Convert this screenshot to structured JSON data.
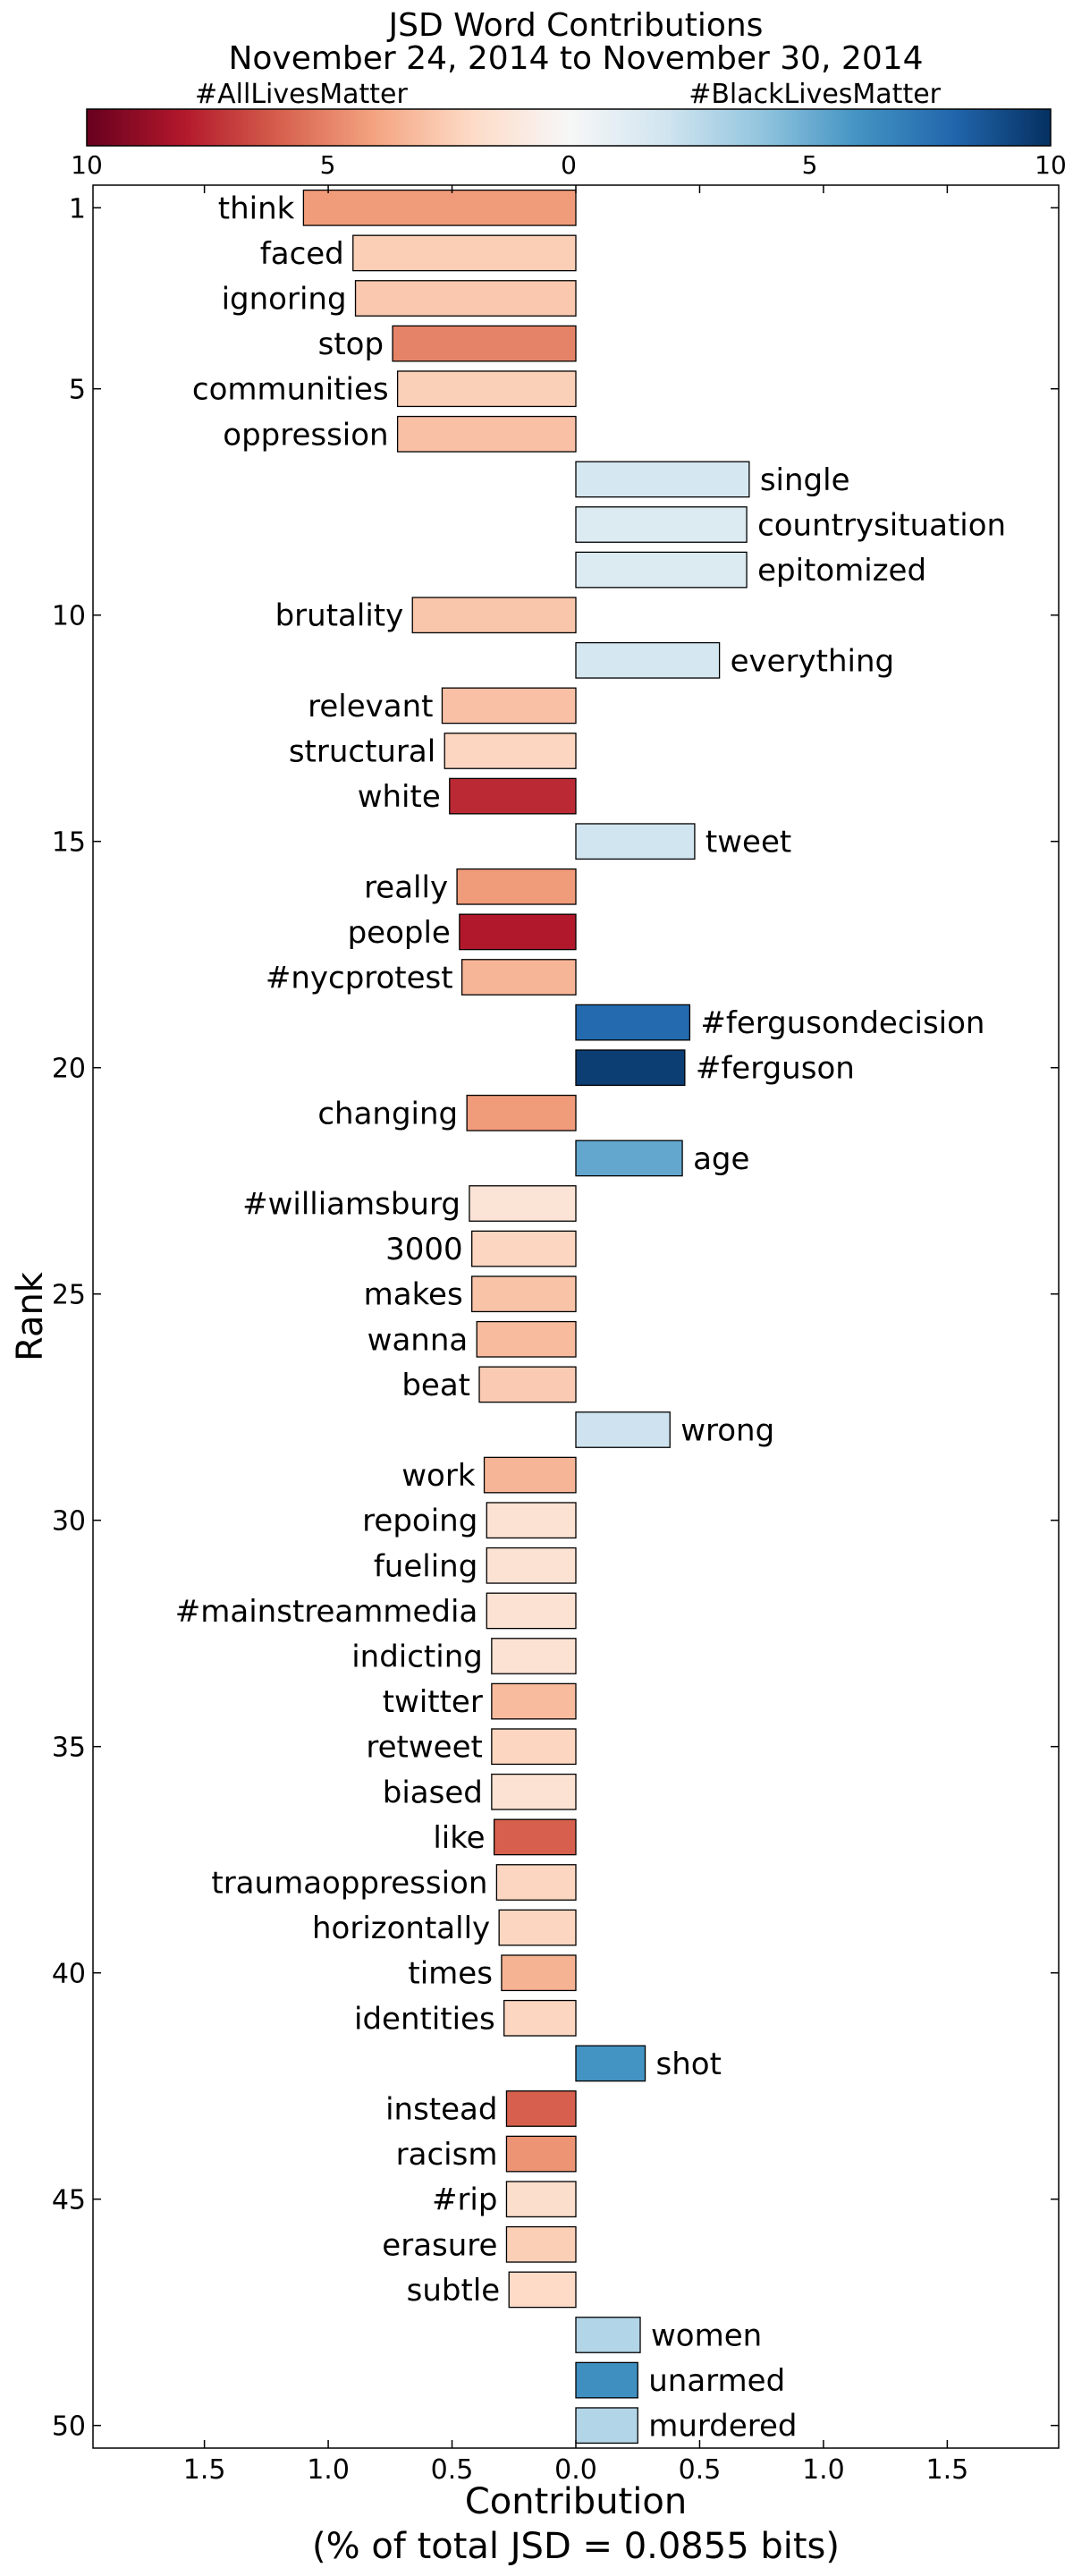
{
  "chart_data": {
    "type": "bar",
    "orientation": "horizontal",
    "title": "JSD Word Contributions",
    "subtitle": "November 24, 2014 to November 30, 2014",
    "xlabel": "Contribution",
    "xlabel_sub": "(% of total JSD = 0.0855 bits)",
    "ylabel": "Rank",
    "xlim": [
      -1.95,
      1.95
    ],
    "x_ticks": [
      -1.5,
      -1.0,
      -0.5,
      0.0,
      0.5,
      1.0,
      1.5
    ],
    "x_tick_labels": [
      "1.5",
      "1.0",
      "0.5",
      "0.0",
      "0.5",
      "1.0",
      "1.5"
    ],
    "y_ticks": [
      1,
      5,
      10,
      15,
      20,
      25,
      30,
      35,
      40,
      45,
      50
    ],
    "y_tick_labels": [
      "1",
      "5",
      "10",
      "15",
      "20",
      "25",
      "30",
      "35",
      "40",
      "45",
      "50"
    ],
    "grid": false,
    "colorbar": {
      "left_label": "#AllLivesMatter",
      "right_label": "#BlackLivesMatter",
      "ticks": [
        "10",
        "5",
        "0",
        "5",
        "10"
      ],
      "range": [
        -10,
        10
      ],
      "colors": [
        "#67001f",
        "#b2182b",
        "#d6604d",
        "#f4a582",
        "#fddbc7",
        "#f7f7f7",
        "#d1e5f0",
        "#92c5de",
        "#4393c3",
        "#2166ac",
        "#053061"
      ]
    },
    "series": [
      {
        "rank": 1,
        "word": "think",
        "value": -1.1,
        "color_value": -4.3
      },
      {
        "rank": 2,
        "word": "faced",
        "value": -0.9,
        "color_value": -2.5
      },
      {
        "rank": 3,
        "word": "ignoring",
        "value": -0.89,
        "color_value": -2.7
      },
      {
        "rank": 4,
        "word": "stop",
        "value": -0.74,
        "color_value": -5.0
      },
      {
        "rank": 5,
        "word": "communities",
        "value": -0.72,
        "color_value": -2.4
      },
      {
        "rank": 6,
        "word": "oppression",
        "value": -0.72,
        "color_value": -3.0
      },
      {
        "rank": 7,
        "word": "single",
        "value": 0.7,
        "color_value": 1.8
      },
      {
        "rank": 8,
        "word": "countrysituation",
        "value": 0.69,
        "color_value": 1.4
      },
      {
        "rank": 9,
        "word": "epitomized",
        "value": 0.69,
        "color_value": 1.4
      },
      {
        "rank": 10,
        "word": "brutality",
        "value": -0.66,
        "color_value": -2.8
      },
      {
        "rank": 11,
        "word": "everything",
        "value": 0.58,
        "color_value": 1.8
      },
      {
        "rank": 12,
        "word": "relevant",
        "value": -0.54,
        "color_value": -3.0
      },
      {
        "rank": 13,
        "word": "structural",
        "value": -0.53,
        "color_value": -2.2
      },
      {
        "rank": 14,
        "word": "white",
        "value": -0.51,
        "color_value": -7.5
      },
      {
        "rank": 15,
        "word": "tweet",
        "value": 0.48,
        "color_value": 2.0
      },
      {
        "rank": 16,
        "word": "really",
        "value": -0.48,
        "color_value": -4.3
      },
      {
        "rank": 17,
        "word": "people",
        "value": -0.47,
        "color_value": -8.0
      },
      {
        "rank": 18,
        "word": "#nycprotest",
        "value": -0.46,
        "color_value": -3.4
      },
      {
        "rank": 19,
        "word": "#fergusondecision",
        "value": 0.46,
        "color_value": 7.8
      },
      {
        "rank": 20,
        "word": "#ferguson",
        "value": 0.44,
        "color_value": 9.5
      },
      {
        "rank": 21,
        "word": "changing",
        "value": -0.44,
        "color_value": -4.3
      },
      {
        "rank": 22,
        "word": "age",
        "value": 0.43,
        "color_value": 5.2
      },
      {
        "rank": 23,
        "word": "#williamsburg",
        "value": -0.43,
        "color_value": -1.4
      },
      {
        "rank": 24,
        "word": "3000",
        "value": -0.42,
        "color_value": -2.2
      },
      {
        "rank": 25,
        "word": "makes",
        "value": -0.42,
        "color_value": -2.9
      },
      {
        "rank": 26,
        "word": "wanna",
        "value": -0.4,
        "color_value": -3.2
      },
      {
        "rank": 27,
        "word": "beat",
        "value": -0.39,
        "color_value": -2.6
      },
      {
        "rank": 28,
        "word": "wrong",
        "value": 0.38,
        "color_value": 2.1
      },
      {
        "rank": 29,
        "word": "work",
        "value": -0.37,
        "color_value": -3.4
      },
      {
        "rank": 30,
        "word": "repoing",
        "value": -0.36,
        "color_value": -1.5
      },
      {
        "rank": 31,
        "word": "fueling",
        "value": -0.36,
        "color_value": -1.5
      },
      {
        "rank": 32,
        "word": "#mainstreammedia",
        "value": -0.36,
        "color_value": -1.5
      },
      {
        "rank": 33,
        "word": "indicting",
        "value": -0.34,
        "color_value": -1.5
      },
      {
        "rank": 34,
        "word": "twitter",
        "value": -0.34,
        "color_value": -3.2
      },
      {
        "rank": 35,
        "word": "retweet",
        "value": -0.34,
        "color_value": -2.2
      },
      {
        "rank": 36,
        "word": "biased",
        "value": -0.34,
        "color_value": -1.5
      },
      {
        "rank": 37,
        "word": "like",
        "value": -0.33,
        "color_value": -6.0
      },
      {
        "rank": 38,
        "word": "traumaoppression",
        "value": -0.32,
        "color_value": -2.2
      },
      {
        "rank": 39,
        "word": "horizontally",
        "value": -0.31,
        "color_value": -2.2
      },
      {
        "rank": 40,
        "word": "times",
        "value": -0.3,
        "color_value": -3.5
      },
      {
        "rank": 41,
        "word": "identities",
        "value": -0.29,
        "color_value": -2.2
      },
      {
        "rank": 42,
        "word": "shot",
        "value": 0.28,
        "color_value": 6.0
      },
      {
        "rank": 43,
        "word": "instead",
        "value": -0.28,
        "color_value": -6.0
      },
      {
        "rank": 44,
        "word": "racism",
        "value": -0.28,
        "color_value": -4.5
      },
      {
        "rank": 45,
        "word": "#rip",
        "value": -0.28,
        "color_value": -1.8
      },
      {
        "rank": 46,
        "word": "erasure",
        "value": -0.28,
        "color_value": -2.5
      },
      {
        "rank": 47,
        "word": "subtle",
        "value": -0.27,
        "color_value": -2.0
      },
      {
        "rank": 48,
        "word": "women",
        "value": 0.26,
        "color_value": 3.0
      },
      {
        "rank": 49,
        "word": "unarmed",
        "value": 0.25,
        "color_value": 6.2
      },
      {
        "rank": 50,
        "word": "murdered",
        "value": 0.25,
        "color_value": 3.0
      }
    ]
  }
}
